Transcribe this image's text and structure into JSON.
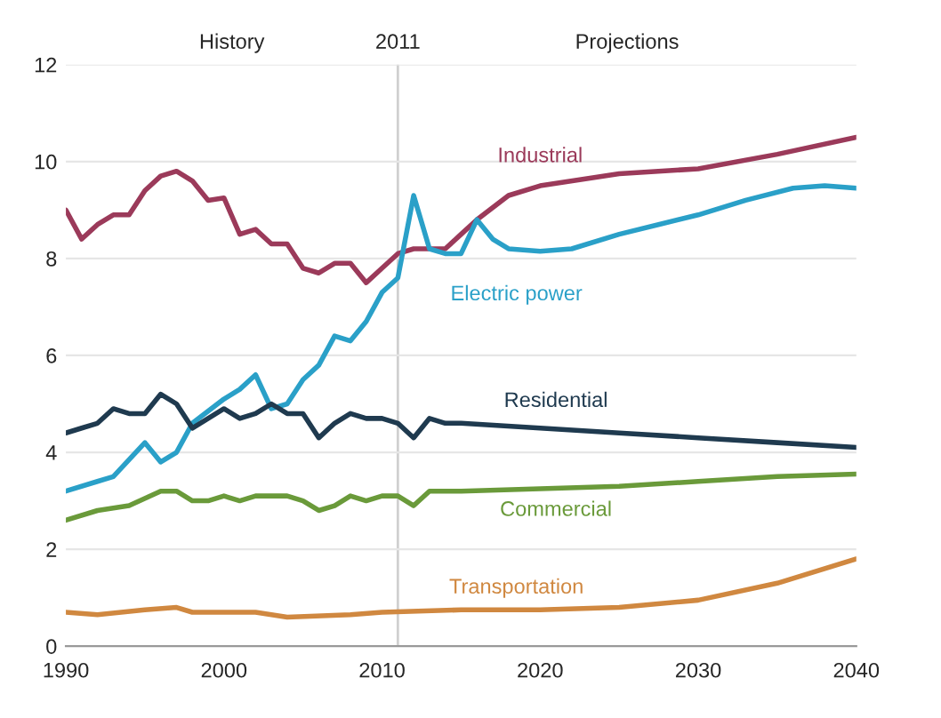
{
  "chart_data": {
    "type": "line",
    "annotations": [
      "History",
      "Projections"
    ],
    "xlim": [
      1990,
      2040
    ],
    "xticks": [
      1990,
      2000,
      2010,
      2020,
      2030,
      2040
    ],
    "ylim": [
      0,
      12
    ],
    "yticks": [
      0,
      2,
      4,
      6,
      8,
      10,
      12
    ],
    "grid": "y",
    "legend": false,
    "ref_lines": [
      {
        "axis": "x",
        "value": 2011,
        "label": "2011",
        "color": "#d0d0d0"
      }
    ],
    "series": [
      {
        "name": "Industrial",
        "color": "#9b3a5a",
        "x": [
          1990,
          1991,
          1992,
          1993,
          1994,
          1995,
          1996,
          1997,
          1998,
          1999,
          2000,
          2001,
          2002,
          2003,
          2004,
          2005,
          2006,
          2007,
          2008,
          2009,
          2010,
          2011,
          2012,
          2013,
          2014,
          2015,
          2016,
          2018,
          2020,
          2025,
          2030,
          2035,
          2040
        ],
        "values": [
          9.0,
          8.4,
          8.7,
          8.9,
          8.9,
          9.4,
          9.7,
          9.8,
          9.6,
          9.2,
          9.25,
          8.5,
          8.6,
          8.3,
          8.3,
          7.8,
          7.7,
          7.9,
          7.9,
          7.5,
          7.8,
          8.1,
          8.2,
          8.2,
          8.2,
          8.5,
          8.8,
          9.3,
          9.5,
          9.75,
          9.85,
          10.15,
          10.5
        ]
      },
      {
        "name": "Electric power",
        "color": "#2aa0c8",
        "x": [
          1990,
          1992,
          1993,
          1995,
          1996,
          1997,
          1998,
          2000,
          2001,
          2002,
          2003,
          2004,
          2005,
          2006,
          2007,
          2008,
          2009,
          2010,
          2011,
          2012,
          2013,
          2014,
          2015,
          2016,
          2017,
          2018,
          2020,
          2022,
          2025,
          2030,
          2033,
          2036,
          2038,
          2040
        ],
        "values": [
          3.2,
          3.4,
          3.5,
          4.2,
          3.8,
          4.0,
          4.6,
          5.1,
          5.3,
          5.6,
          4.9,
          5.0,
          5.5,
          5.8,
          6.4,
          6.3,
          6.7,
          7.3,
          7.6,
          9.3,
          8.2,
          8.1,
          8.1,
          8.8,
          8.4,
          8.2,
          8.15,
          8.2,
          8.5,
          8.9,
          9.2,
          9.45,
          9.5,
          9.45
        ]
      },
      {
        "name": "Residential",
        "color": "#1f3a4f",
        "x": [
          1990,
          1991,
          1992,
          1993,
          1994,
          1995,
          1996,
          1997,
          1998,
          1999,
          2000,
          2001,
          2002,
          2003,
          2004,
          2005,
          2006,
          2007,
          2008,
          2009,
          2010,
          2011,
          2012,
          2013,
          2014,
          2015,
          2020,
          2025,
          2030,
          2035,
          2040
        ],
        "values": [
          4.4,
          4.5,
          4.6,
          4.9,
          4.8,
          4.8,
          5.2,
          5.0,
          4.5,
          4.7,
          4.9,
          4.7,
          4.8,
          5.0,
          4.8,
          4.8,
          4.3,
          4.6,
          4.8,
          4.7,
          4.7,
          4.6,
          4.3,
          4.7,
          4.6,
          4.6,
          4.5,
          4.4,
          4.3,
          4.2,
          4.1
        ]
      },
      {
        "name": "Commercial",
        "color": "#6a9a3a",
        "x": [
          1990,
          1992,
          1994,
          1996,
          1997,
          1998,
          1999,
          2000,
          2001,
          2002,
          2004,
          2005,
          2006,
          2007,
          2008,
          2009,
          2010,
          2011,
          2012,
          2013,
          2015,
          2020,
          2025,
          2030,
          2035,
          2040
        ],
        "values": [
          2.6,
          2.8,
          2.9,
          3.2,
          3.2,
          3.0,
          3.0,
          3.1,
          3.0,
          3.1,
          3.1,
          3.0,
          2.8,
          2.9,
          3.1,
          3.0,
          3.1,
          3.1,
          2.9,
          3.2,
          3.2,
          3.25,
          3.3,
          3.4,
          3.5,
          3.55
        ]
      },
      {
        "name": "Transportation",
        "color": "#d08840",
        "x": [
          1990,
          1992,
          1995,
          1997,
          1998,
          2002,
          2004,
          2008,
          2010,
          2015,
          2020,
          2025,
          2030,
          2035,
          2040
        ],
        "values": [
          0.7,
          0.65,
          0.75,
          0.8,
          0.7,
          0.7,
          0.6,
          0.65,
          0.7,
          0.75,
          0.75,
          0.8,
          0.95,
          1.3,
          1.8
        ]
      }
    ]
  }
}
